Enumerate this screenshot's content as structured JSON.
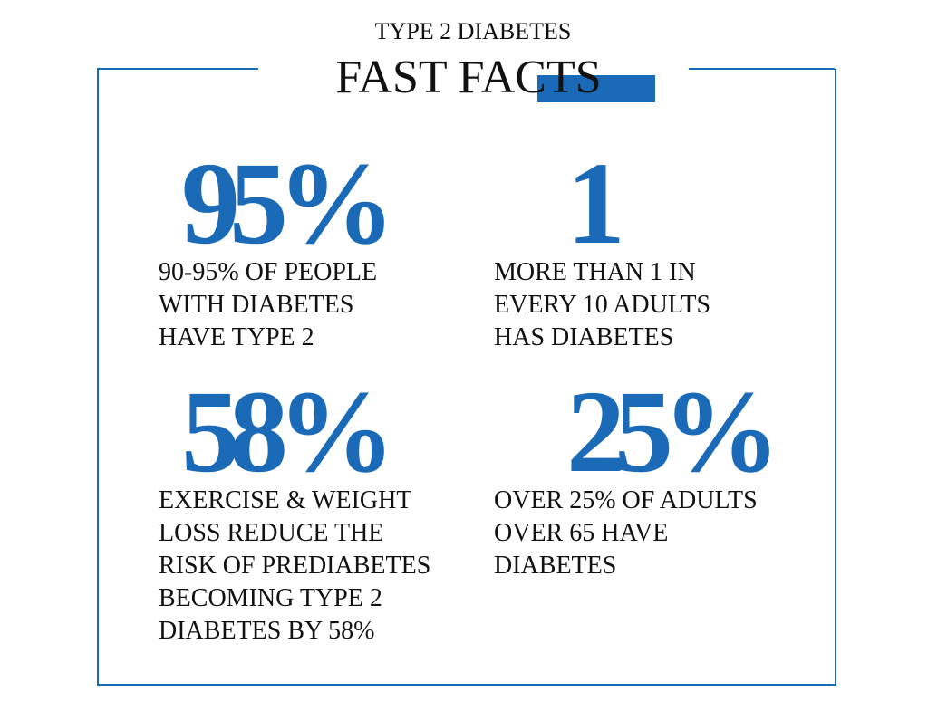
{
  "header": {
    "subtitle": "TYPE 2 DIABETES",
    "title": "FAST FACTS"
  },
  "facts": [
    {
      "stat": "95%",
      "text": [
        "90-95% OF PEOPLE",
        "WITH DIABETES",
        "HAVE TYPE 2"
      ]
    },
    {
      "stat": "1",
      "text": [
        "MORE THAN 1 IN",
        "EVERY 10 ADULTS",
        "HAS DIABETES"
      ]
    },
    {
      "stat": "58%",
      "text": [
        "EXERCISE & WEIGHT",
        "LOSS REDUCE THE",
        "RISK OF PREDIABETES",
        "BECOMING TYPE 2",
        "DIABETES BY 58%"
      ]
    },
    {
      "stat": "25%",
      "text": [
        "OVER 25% OF ADULTS",
        "OVER 65 HAVE",
        "DIABETES"
      ]
    }
  ]
}
